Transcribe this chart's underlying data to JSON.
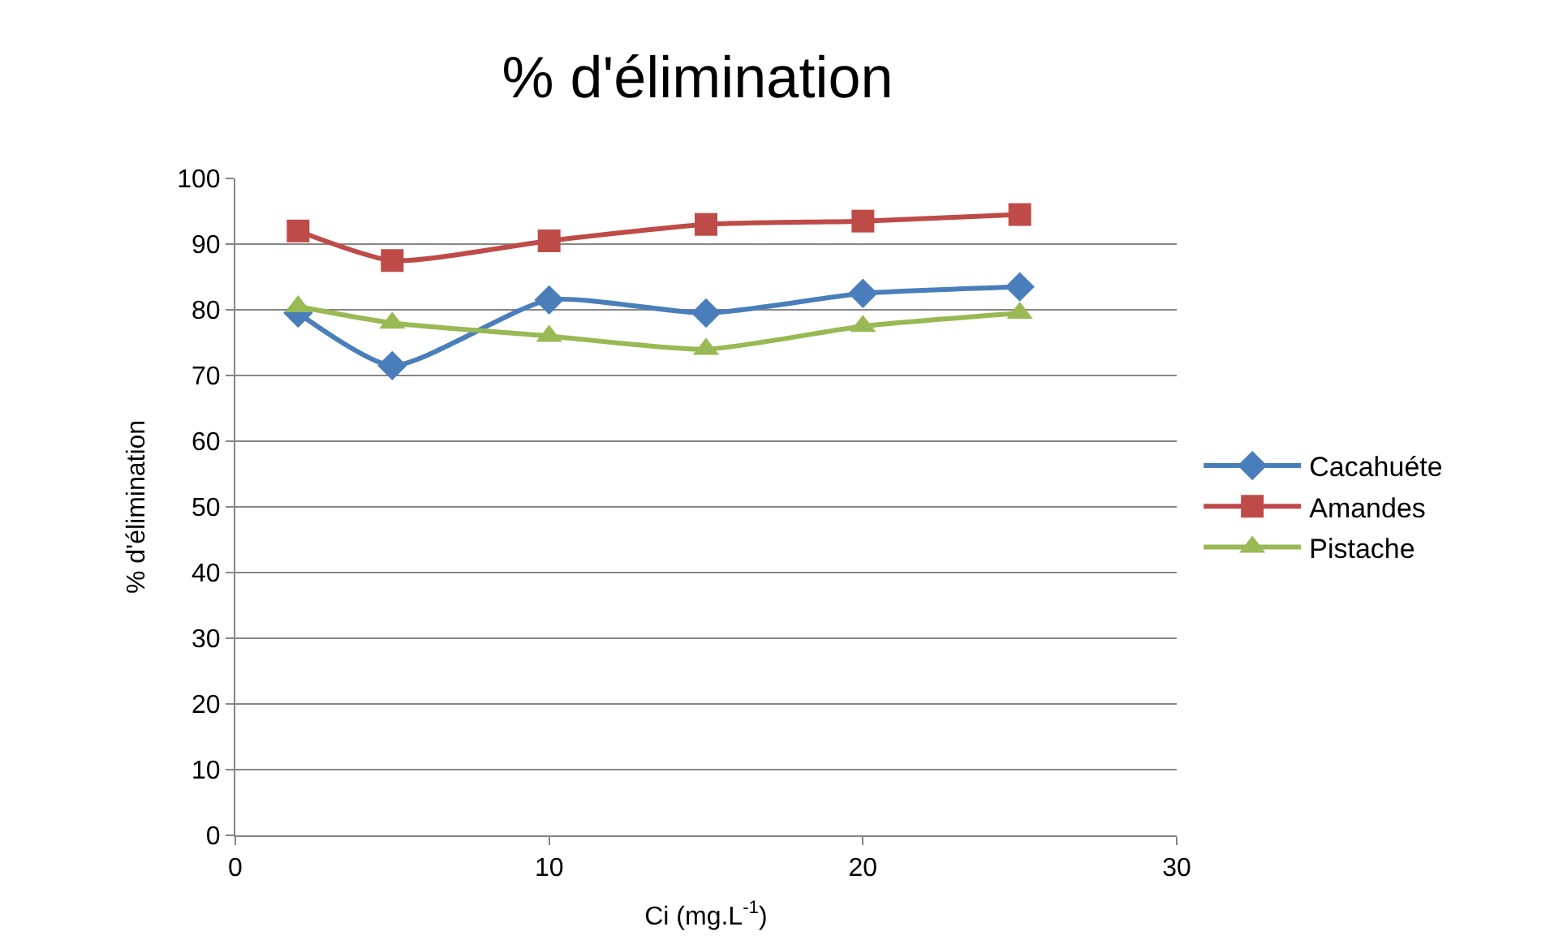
{
  "chart_data": {
    "type": "line",
    "title": "% d'élimination",
    "xlabel": "Ci (mg.L$^{-1}$)",
    "ylabel": "% d'élimination",
    "x": [
      2,
      5,
      10,
      15,
      20,
      25
    ],
    "series": [
      {
        "name": "Cacahuéte",
        "color": "#4a7ebb",
        "marker": "diamond",
        "values": [
          79.5,
          71.5,
          81.5,
          79.5,
          82.5,
          83.5
        ]
      },
      {
        "name": "Amandes",
        "color": "#be4b48",
        "marker": "square",
        "values": [
          92,
          87.5,
          90.5,
          93,
          93.5,
          94.5
        ]
      },
      {
        "name": "Pistache",
        "color": "#98b954",
        "marker": "triangle",
        "values": [
          80.5,
          78,
          76,
          74,
          77.5,
          79.5
        ]
      }
    ],
    "xlim": [
      0,
      30
    ],
    "xticks": [
      0,
      10,
      20,
      30
    ],
    "ylim": [
      0,
      100
    ],
    "yticks": [
      0,
      10,
      20,
      30,
      40,
      50,
      60,
      70,
      80,
      90,
      100
    ],
    "grid": "y",
    "legend": "right"
  }
}
